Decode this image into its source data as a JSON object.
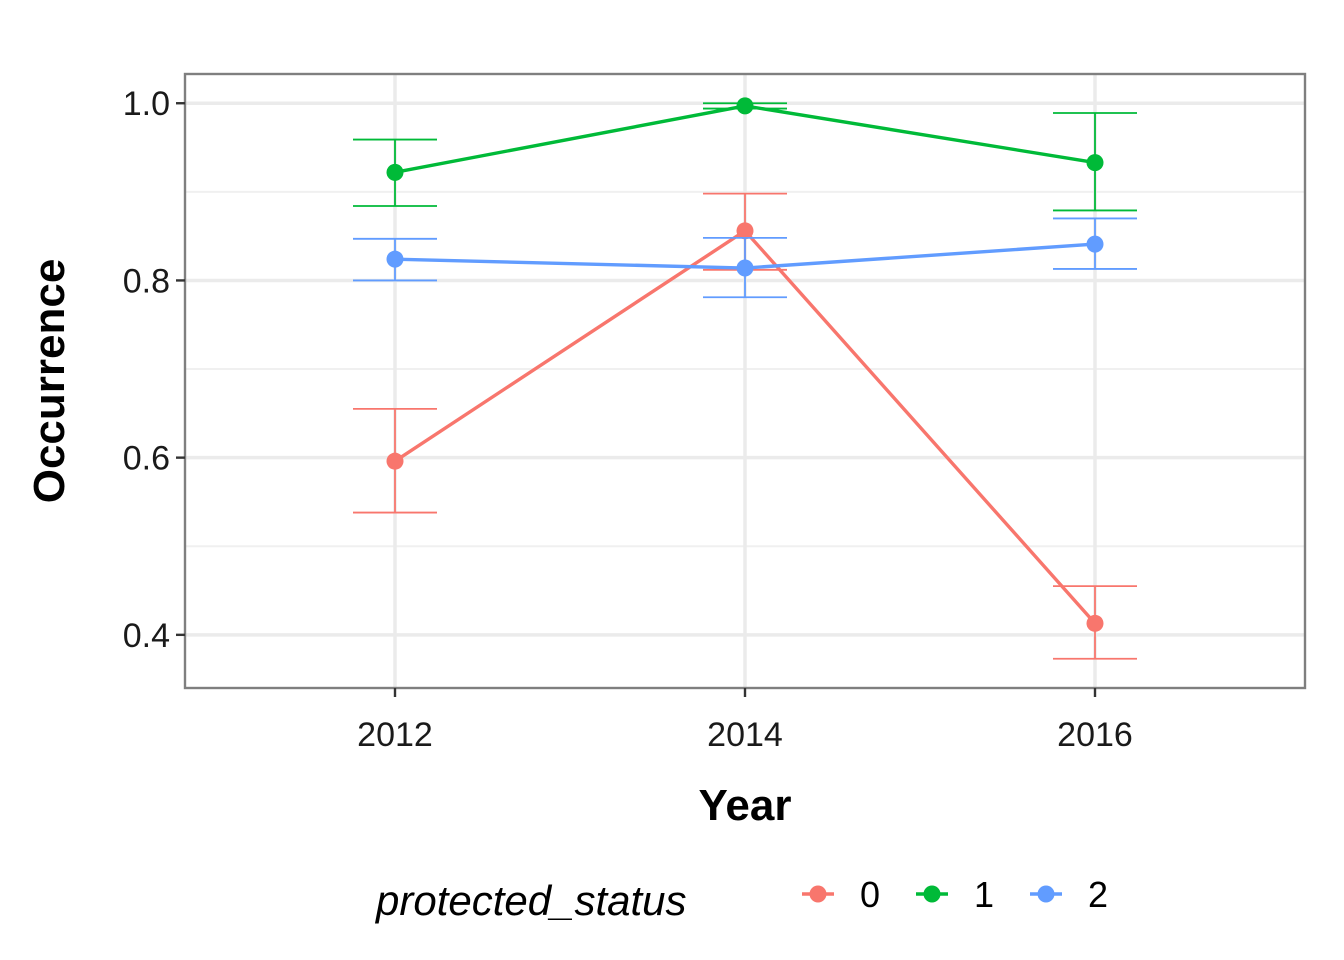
{
  "chart_data": {
    "type": "line",
    "xlabel": "Year",
    "ylabel": "Occurrence",
    "x": [
      2012,
      2014,
      2016
    ],
    "x_ticks": [
      "2012",
      "2014",
      "2016"
    ],
    "xlim": [
      2010.8,
      2017.2
    ],
    "ylim": [
      0.34,
      1.033
    ],
    "y_ticks": [
      "0.4",
      "0.6",
      "0.8",
      "1.0"
    ],
    "y_tick_values": [
      0.4,
      0.6,
      0.8,
      1.0
    ],
    "y_minor_values": [
      0.5,
      0.7,
      0.9
    ],
    "grid": true,
    "legend": {
      "title": "protected_status",
      "position": "bottom"
    },
    "series": [
      {
        "name": "0",
        "color": "#F8766D",
        "values": [
          0.596,
          0.856,
          0.413
        ],
        "lower": [
          0.538,
          0.812,
          0.373
        ],
        "upper": [
          0.655,
          0.898,
          0.455
        ]
      },
      {
        "name": "1",
        "color": "#00BA38",
        "values": [
          0.922,
          0.997,
          0.933
        ],
        "lower": [
          0.884,
          0.994,
          0.879
        ],
        "upper": [
          0.959,
          1.0,
          0.989
        ]
      },
      {
        "name": "2",
        "color": "#619CFF",
        "values": [
          0.824,
          0.814,
          0.841
        ],
        "lower": [
          0.8,
          0.781,
          0.813
        ],
        "upper": [
          0.847,
          0.848,
          0.87
        ]
      }
    ]
  }
}
